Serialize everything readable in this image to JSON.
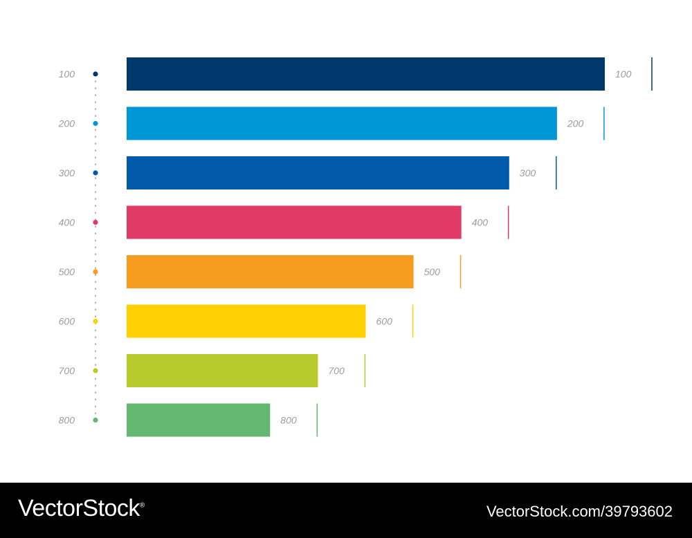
{
  "chart_data": {
    "type": "bar",
    "orientation": "horizontal",
    "categories": [
      "100",
      "200",
      "300",
      "400",
      "500",
      "600",
      "700",
      "800"
    ],
    "values": [
      100,
      90,
      80,
      70,
      60,
      50,
      40,
      30
    ],
    "value_labels": [
      "100",
      "200",
      "300",
      "400",
      "500",
      "600",
      "700",
      "800"
    ],
    "colors": [
      "#00386b",
      "#0097d7",
      "#005aa9",
      "#e03b67",
      "#f89c20",
      "#ffd102",
      "#b7cc2c",
      "#64b771"
    ],
    "title": "",
    "xlabel": "",
    "ylabel": "",
    "xlim": [
      0,
      100
    ],
    "grid": false,
    "legend": "none"
  },
  "footer": {
    "brand": "VectorStock",
    "brand_mark": "®",
    "image_id": "VectorStock.com/39793602",
    "background": "#000000"
  }
}
